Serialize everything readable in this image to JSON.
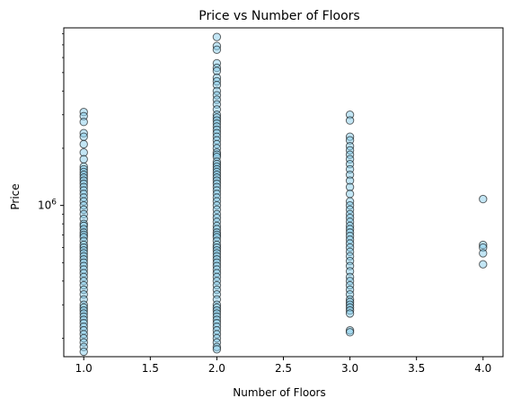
{
  "chart_data": {
    "type": "scatter",
    "title": "Price vs Number of Floors",
    "xlabel": "Number of Floors",
    "ylabel": "Price",
    "xlim": [
      0.85,
      4.15
    ],
    "ylim": [
      160000,
      8600000
    ],
    "yscale": "log",
    "grid": false,
    "x_ticks": [
      1.0,
      1.5,
      2.0,
      2.5,
      3.0,
      3.5,
      4.0
    ],
    "x_tick_labels": [
      "1.0",
      "1.5",
      "2.0",
      "2.5",
      "3.0",
      "3.5",
      "4.0"
    ],
    "y_major_ticks": [
      1000000
    ],
    "y_major_tick_base": "10",
    "y_major_tick_exp": "6",
    "y_minor_ticks": [
      200000,
      300000,
      400000,
      500000,
      600000,
      700000,
      800000,
      900000,
      2000000,
      3000000,
      4000000,
      5000000,
      6000000,
      7000000,
      8000000
    ],
    "marker_fill": "#87CEEB",
    "marker_edge": "#000000",
    "marker_alpha": 0.5,
    "series": [
      {
        "x": 1,
        "values": [
          3100000,
          2950000,
          2750000,
          2400000,
          2300000,
          2100000,
          1900000,
          1750000,
          1600000,
          1550000,
          1500000,
          1450000,
          1400000,
          1350000,
          1300000,
          1250000,
          1200000,
          1150000,
          1100000,
          1050000,
          1000000,
          950000,
          900000,
          850000,
          800000,
          780000,
          750000,
          720000,
          700000,
          680000,
          650000,
          620000,
          600000,
          580000,
          560000,
          540000,
          520000,
          500000,
          480000,
          460000,
          440000,
          420000,
          400000,
          380000,
          360000,
          340000,
          320000,
          300000,
          290000,
          280000,
          270000,
          260000,
          250000,
          240000,
          230000,
          220000,
          210000,
          200000,
          190000,
          180000,
          170000
        ]
      },
      {
        "x": 2,
        "values": [
          7700000,
          6900000,
          6600000,
          5600000,
          5300000,
          5100000,
          4700000,
          4500000,
          4300000,
          4000000,
          3800000,
          3600000,
          3400000,
          3200000,
          3000000,
          2900000,
          2800000,
          2700000,
          2600000,
          2500000,
          2400000,
          2300000,
          2200000,
          2100000,
          2000000,
          1900000,
          1850000,
          1800000,
          1700000,
          1650000,
          1600000,
          1550000,
          1500000,
          1450000,
          1400000,
          1350000,
          1300000,
          1250000,
          1200000,
          1150000,
          1100000,
          1050000,
          1000000,
          950000,
          900000,
          860000,
          820000,
          780000,
          750000,
          720000,
          700000,
          680000,
          650000,
          620000,
          600000,
          580000,
          560000,
          540000,
          520000,
          500000,
          480000,
          460000,
          440000,
          420000,
          400000,
          380000,
          360000,
          340000,
          320000,
          300000,
          290000,
          280000,
          270000,
          260000,
          250000,
          240000,
          230000,
          220000,
          210000,
          200000,
          190000,
          180000,
          175000
        ]
      },
      {
        "x": 3,
        "values": [
          3000000,
          2800000,
          2300000,
          2200000,
          2050000,
          1950000,
          1850000,
          1750000,
          1650000,
          1550000,
          1450000,
          1350000,
          1250000,
          1150000,
          1050000,
          1000000,
          950000,
          900000,
          860000,
          820000,
          780000,
          750000,
          720000,
          690000,
          660000,
          630000,
          600000,
          570000,
          540000,
          510000,
          480000,
          450000,
          420000,
          400000,
          380000,
          360000,
          340000,
          320000,
          310000,
          300000,
          290000,
          280000,
          270000,
          220000,
          215000
        ]
      },
      {
        "x": 4,
        "values": [
          1080000,
          620000,
          600000,
          560000,
          490000
        ]
      }
    ]
  }
}
